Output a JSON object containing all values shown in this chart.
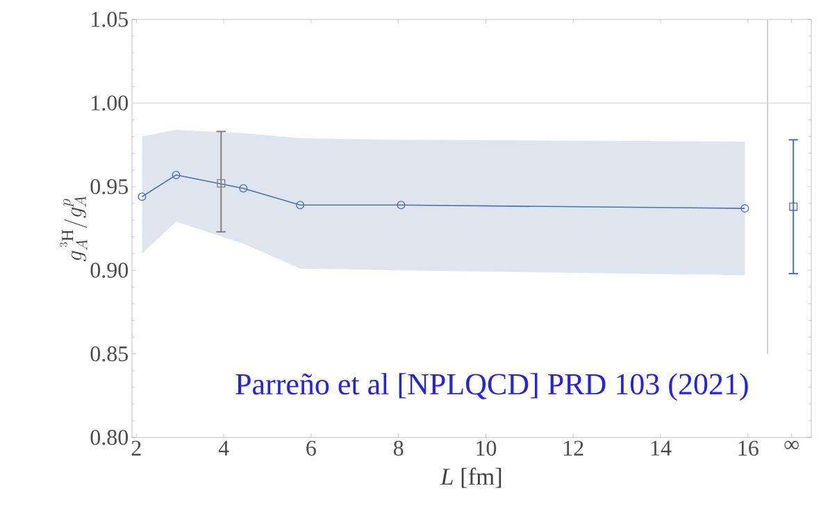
{
  "chart_data": {
    "type": "line",
    "xlabel": "*L* [fm]",
    "ylabel": "g_{A}^{\\,^{3}\\mathrm{H}}/g_{A}^{p}",
    "xlim": [
      1.9,
      17.45
    ],
    "ylim": [
      0.8,
      1.05
    ],
    "xticks": [
      2,
      4,
      6,
      8,
      10,
      12,
      14,
      16,
      {
        "value": 17,
        "label": "∞"
      }
    ],
    "yticks": [
      {
        "value": 0.8,
        "label": "0.80"
      },
      {
        "value": 0.85,
        "label": "0.85"
      },
      {
        "value": 0.9,
        "label": "0.90"
      },
      {
        "value": 0.95,
        "label": "0.95"
      },
      {
        "value": 1.0,
        "label": "1.00"
      },
      {
        "value": 1.05,
        "label": "1.05"
      }
    ],
    "grid": false,
    "line_style": "solid",
    "series": [
      {
        "color": "#4a72b0",
        "marker": "circle",
        "x": [
          2.13,
          2.91,
          4.45,
          5.75,
          8.06,
          15.93
        ],
        "values": [
          0.944,
          0.957,
          0.949,
          0.939,
          0.939,
          0.937
        ],
        "lower": [
          0.91,
          0.929,
          0.916,
          0.901,
          0.9,
          0.897
        ],
        "upper": [
          0.98,
          0.984,
          0.982,
          0.979,
          0.978,
          0.977
        ]
      },
      {
        "type": "scatter",
        "color": "#7f7f7f",
        "marker": "square",
        "x": [
          3.94
        ],
        "values": [
          0.952
        ],
        "errors": [
          [
            0.923,
            0.983
          ]
        ]
      },
      {
        "type": "scatter",
        "color": "#4a72b0",
        "marker": "square",
        "x": [
          17.04
        ],
        "values": [
          0.938
        ],
        "errors": [
          [
            0.898,
            0.978
          ]
        ]
      }
    ],
    "ref_lines": [
      {
        "axis": "y",
        "value": 1.0,
        "color": "#dcdcdc"
      },
      {
        "axis": "x",
        "value": 16.45,
        "color": "#d0d0d0"
      }
    ],
    "annotations": [
      "Parreño et al [NPLQCD] PRD 103 (2021)"
    ]
  }
}
